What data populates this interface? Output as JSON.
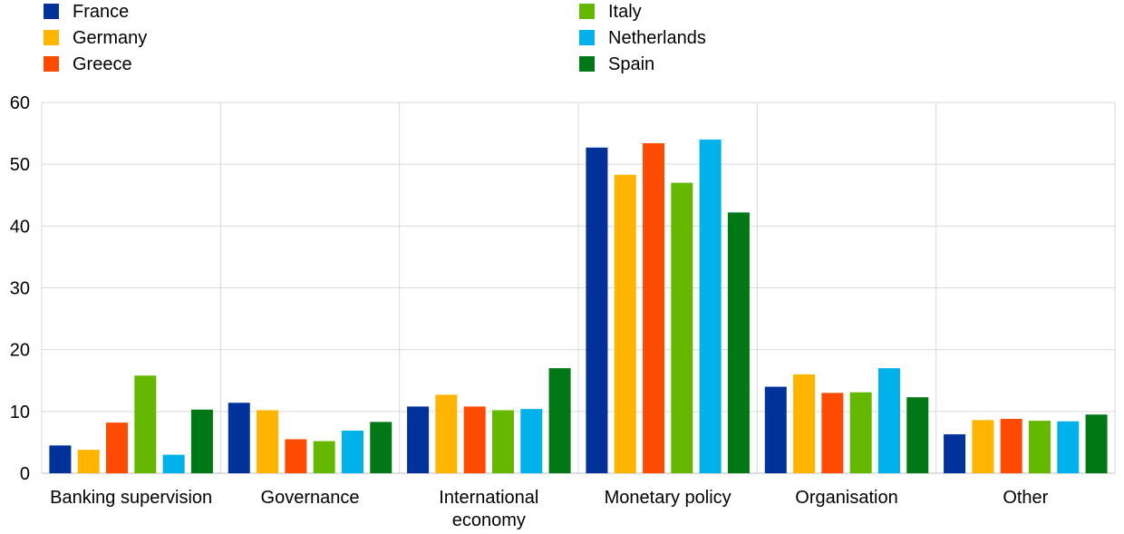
{
  "chart_data": {
    "type": "bar",
    "categories": [
      "Banking supervision",
      "Governance",
      "International economy",
      "Monetary policy",
      "Organisation",
      "Other"
    ],
    "category_label_lines": [
      [
        "Banking supervision"
      ],
      [
        "Governance"
      ],
      [
        "International",
        "economy"
      ],
      [
        "Monetary policy"
      ],
      [
        "Organisation"
      ],
      [
        "Other"
      ]
    ],
    "series": [
      {
        "name": "France",
        "color": "#003299",
        "values": [
          4.5,
          11.4,
          10.8,
          52.7,
          14.0,
          6.3
        ]
      },
      {
        "name": "Germany",
        "color": "#FFB400",
        "values": [
          3.8,
          10.2,
          12.7,
          48.3,
          16.0,
          8.6
        ]
      },
      {
        "name": "Greece",
        "color": "#FF4B00",
        "values": [
          8.2,
          5.5,
          10.8,
          53.4,
          13.0,
          8.8
        ]
      },
      {
        "name": "Italy",
        "color": "#65B800",
        "values": [
          15.8,
          5.2,
          10.2,
          47.0,
          13.1,
          8.5
        ]
      },
      {
        "name": "Netherlands",
        "color": "#00B1EA",
        "values": [
          3.0,
          6.9,
          10.4,
          54.0,
          17.0,
          8.4
        ]
      },
      {
        "name": "Spain",
        "color": "#007816",
        "values": [
          10.3,
          8.3,
          17.0,
          42.2,
          12.3,
          9.5
        ]
      }
    ],
    "yticks": [
      0,
      10,
      20,
      30,
      40,
      50,
      60
    ],
    "ylim": [
      0,
      60
    ],
    "xlabel": "",
    "ylabel": "",
    "grid": true,
    "legend_position": "top"
  }
}
